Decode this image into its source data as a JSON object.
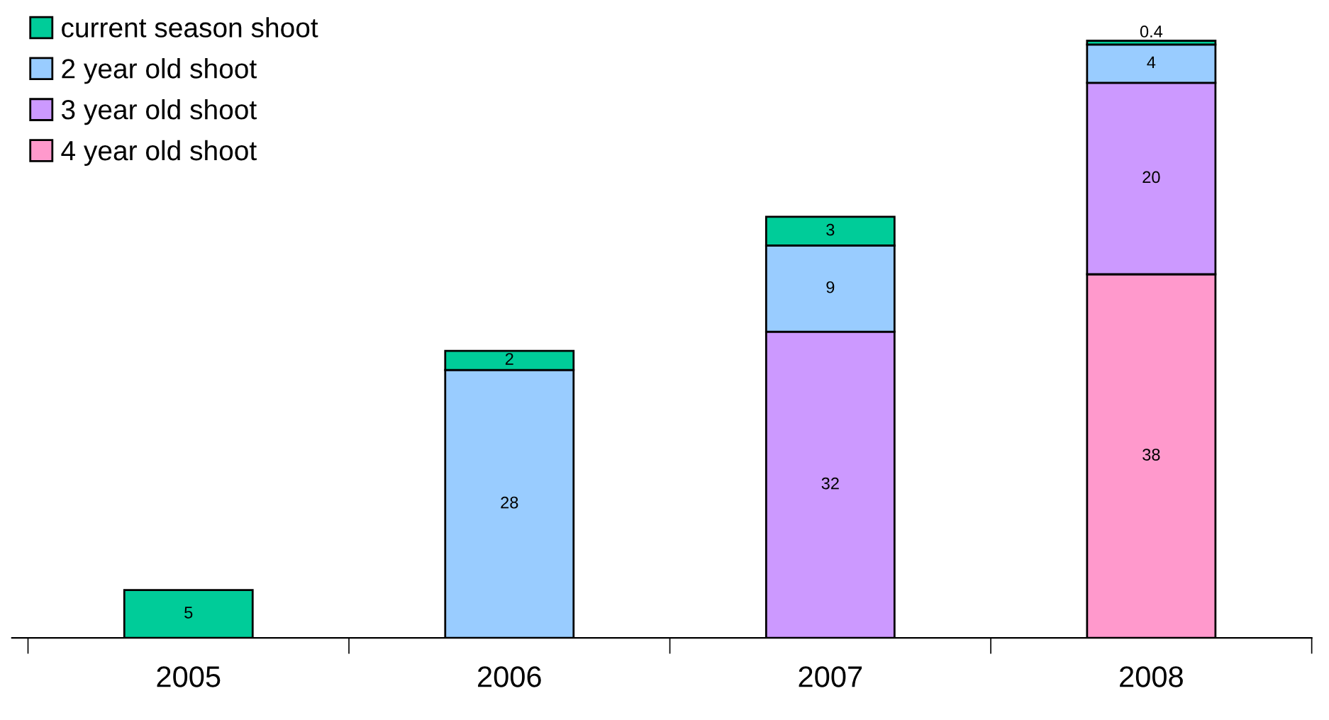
{
  "chart_data": {
    "type": "bar",
    "stacked": true,
    "data_labels": true,
    "legend": "top left",
    "categories": [
      "2005",
      "2006",
      "2007",
      "2008"
    ],
    "series": [
      {
        "name": "4 year old shoot",
        "color": "#ff99cc",
        "values": [
          null,
          null,
          null,
          38
        ]
      },
      {
        "name": "3 year old shoot",
        "color": "#cc99ff",
        "values": [
          null,
          null,
          32,
          20
        ]
      },
      {
        "name": "2 year old shoot",
        "color": "#99ccff",
        "values": [
          null,
          28,
          9,
          4
        ]
      },
      {
        "name": "current season shoot",
        "color": "#00cc99",
        "values": [
          5,
          2,
          3,
          0.4
        ]
      }
    ]
  }
}
